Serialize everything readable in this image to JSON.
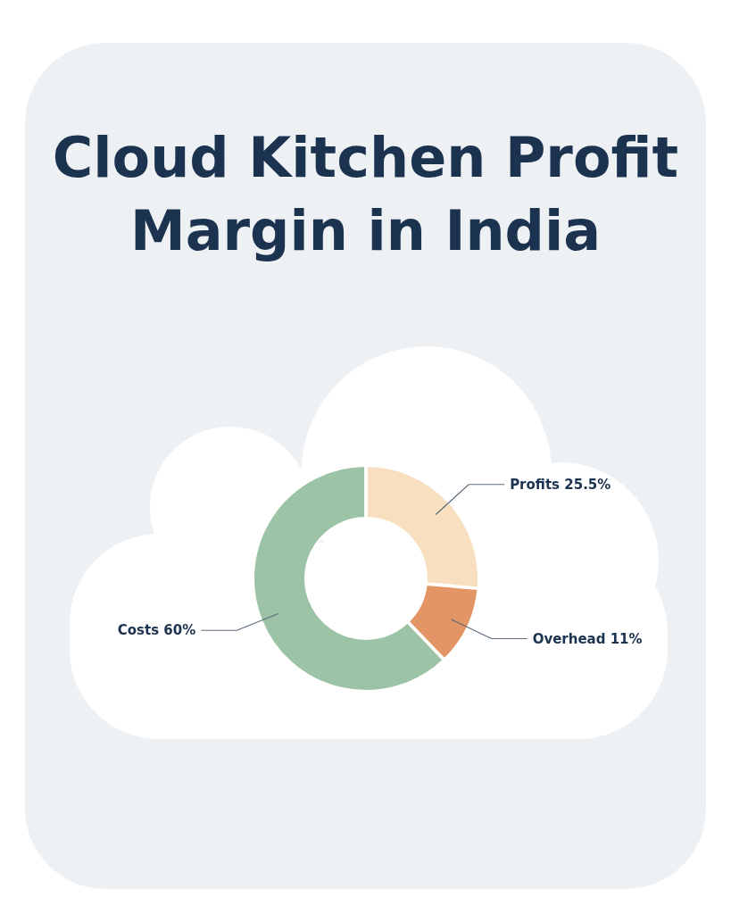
{
  "chart_data": {
    "type": "donut",
    "title": "Cloud Kitchen Profit Margin in India",
    "categories": [
      "Profits",
      "Overhead",
      "Costs"
    ],
    "values": [
      25.5,
      11,
      60
    ],
    "value_labels": [
      "25.5%",
      "11%",
      "60%"
    ],
    "colors": [
      "#f8dfc0",
      "#e39565",
      "#9dc3a6"
    ]
  }
}
